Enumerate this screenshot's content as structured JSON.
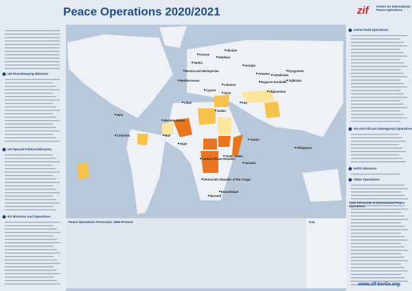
{
  "header": {
    "title": "Peace Operations 2020/2021",
    "logo": "zif",
    "org": "Center for International Peace Operations"
  },
  "left_sections": [
    "UN Peacekeeping Missions",
    "UN Special Political Missions",
    "EU Missions and Operations"
  ],
  "right_sections": [
    "OSCE Field Operations",
    "AU and African Subregional Operations",
    "NATO Missions",
    "Other Operations"
  ],
  "map_labels": [
    "Western Sahara",
    "Kosovo",
    "Serbia",
    "Bosnia and Herzegovina",
    "Moldova",
    "Ukraine",
    "Georgia",
    "Armenia",
    "Nagorno-Karabakh",
    "Cyprus",
    "Lebanon",
    "Syria",
    "Iraq",
    "Libya",
    "Mediterranean",
    "Mali",
    "Niger",
    "Sudan",
    "South Sudan",
    "Central African Republic",
    "Democratic Republic of the Congo",
    "Somalia",
    "Yemen",
    "Afghanistan",
    "Uzbekistan",
    "Kyrgyzstan",
    "Tajikistan",
    "Haiti",
    "Colombia",
    "Mozambique",
    "Burundi",
    "Philippines"
  ],
  "chart": {
    "title": "Peace Operations Personnel, 1950-Present"
  },
  "key": {
    "title": "Key"
  },
  "total": {
    "title": "Total Personnel in International Peace Operations"
  },
  "footer": {
    "url": "www.zif-berlin.org"
  }
}
